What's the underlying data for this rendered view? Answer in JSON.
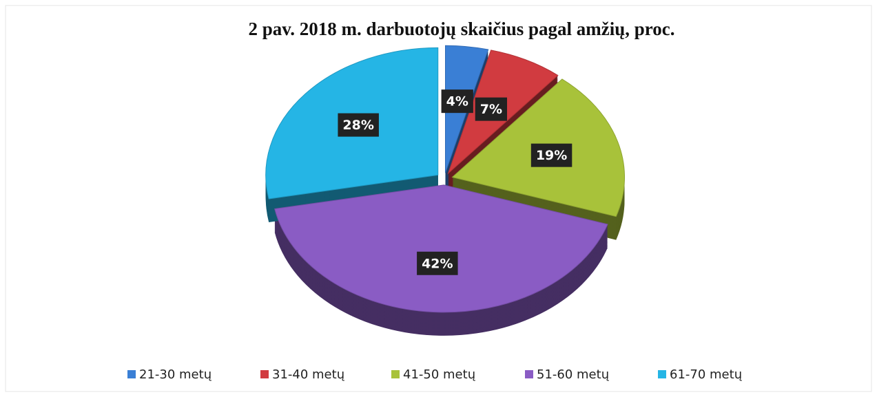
{
  "chart_data": {
    "type": "pie",
    "title": "2 pav. 2018 m. darbuotojų skaičius pagal amžių, proc.",
    "categories": [
      "21-30 metų",
      "31-40 metų",
      "41-50 metų",
      "51-60 metų",
      "61-70 metų"
    ],
    "values": [
      4,
      7,
      19,
      42,
      28
    ],
    "value_labels": [
      "4%",
      "7%",
      "19%",
      "42%",
      "28%"
    ],
    "colors": [
      "#3a7fd5",
      "#d13b40",
      "#a8c23a",
      "#8a5cc4",
      "#25b5e5"
    ],
    "legend": "bottom"
  }
}
